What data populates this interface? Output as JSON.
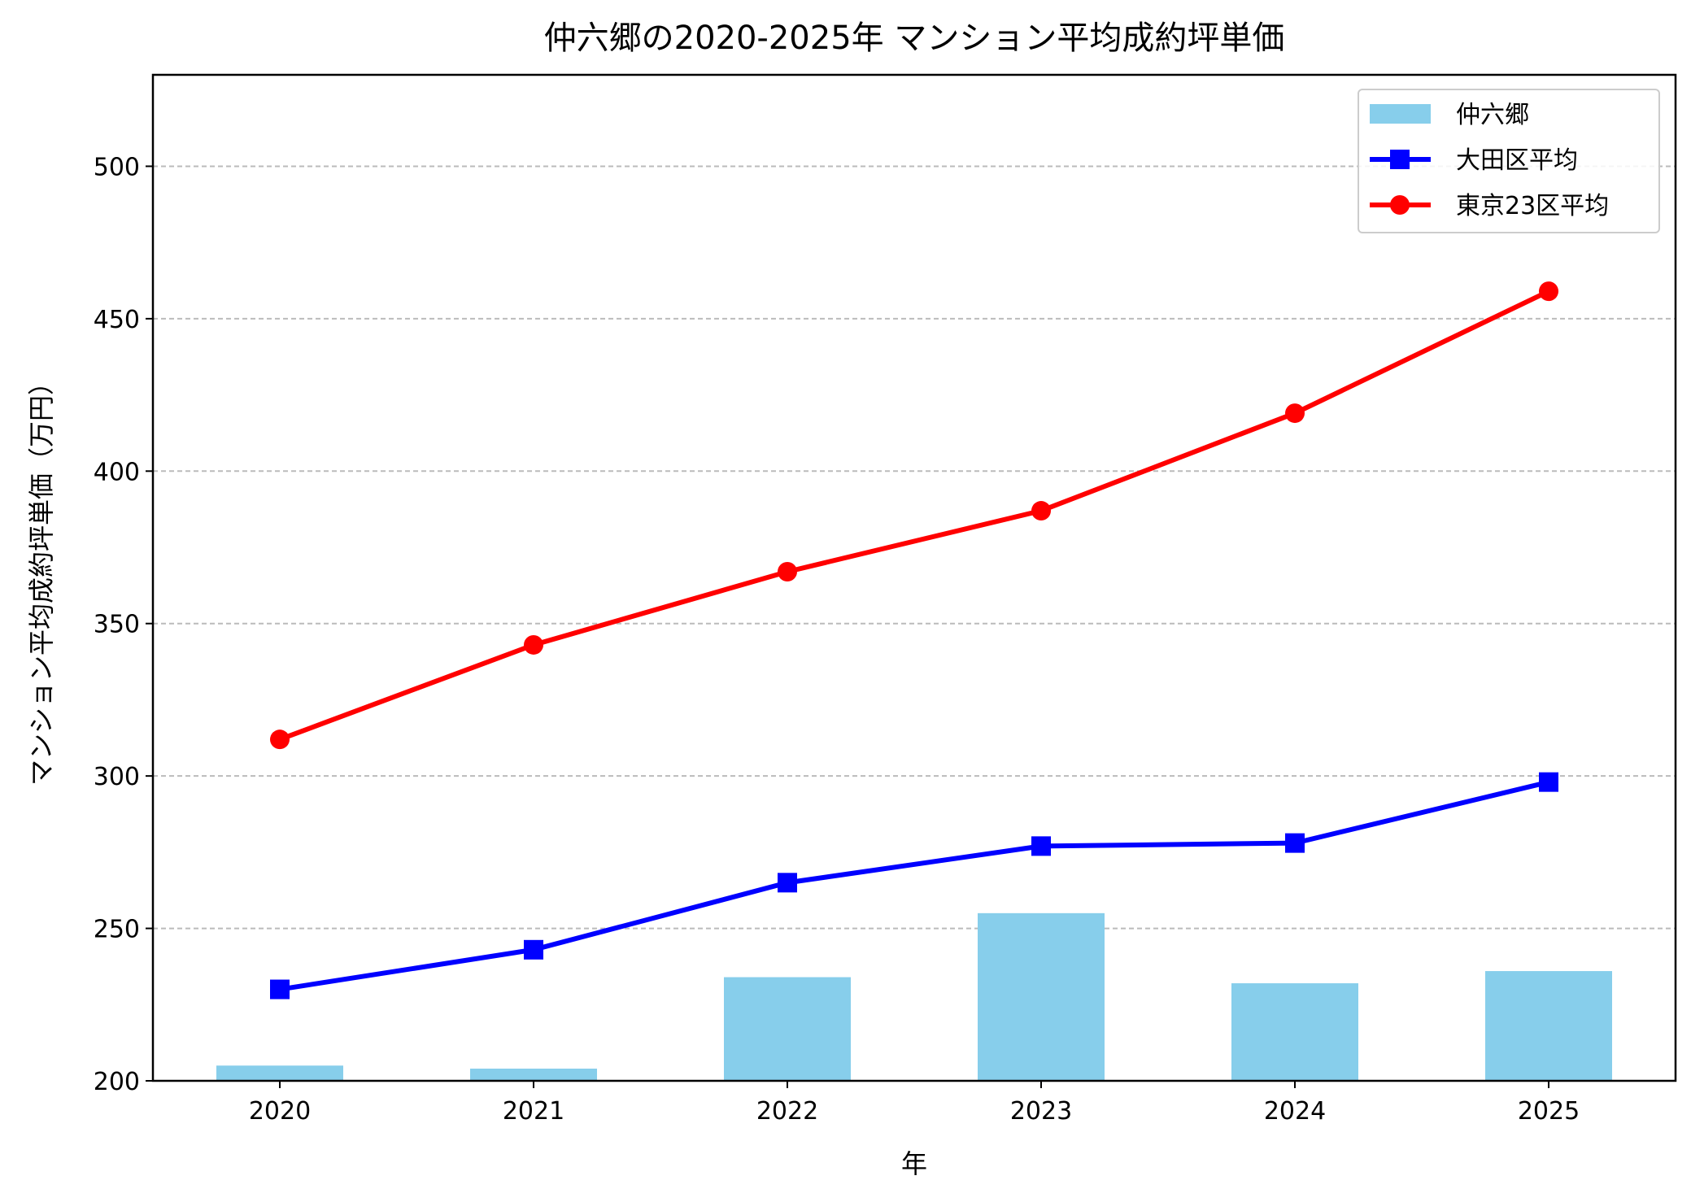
{
  "chart_data": {
    "type": "bar+line",
    "title": "仲六郷の2020-2025年 マンション平均成約坪単価",
    "xlabel": "年",
    "ylabel": "マンション平均成約坪単価（万円）",
    "categories": [
      "2020",
      "2021",
      "2022",
      "2023",
      "2024",
      "2025"
    ],
    "ylim": [
      200,
      530
    ],
    "yticks": [
      200,
      250,
      300,
      350,
      400,
      450,
      500
    ],
    "grid": "y, dashed",
    "legend": "top-right",
    "series": [
      {
        "name": "仲六郷",
        "kind": "bar",
        "color": "#87CEEB",
        "values": [
          205,
          204,
          234,
          255,
          232,
          236
        ]
      },
      {
        "name": "大田区平均",
        "kind": "line",
        "marker": "square",
        "color": "#0000FF",
        "values": [
          230,
          243,
          265,
          277,
          278,
          298
        ]
      },
      {
        "name": "東京23区平均",
        "kind": "line",
        "marker": "circle",
        "color": "#FF0000",
        "values": [
          312,
          343,
          367,
          387,
          419,
          459
        ]
      }
    ]
  }
}
